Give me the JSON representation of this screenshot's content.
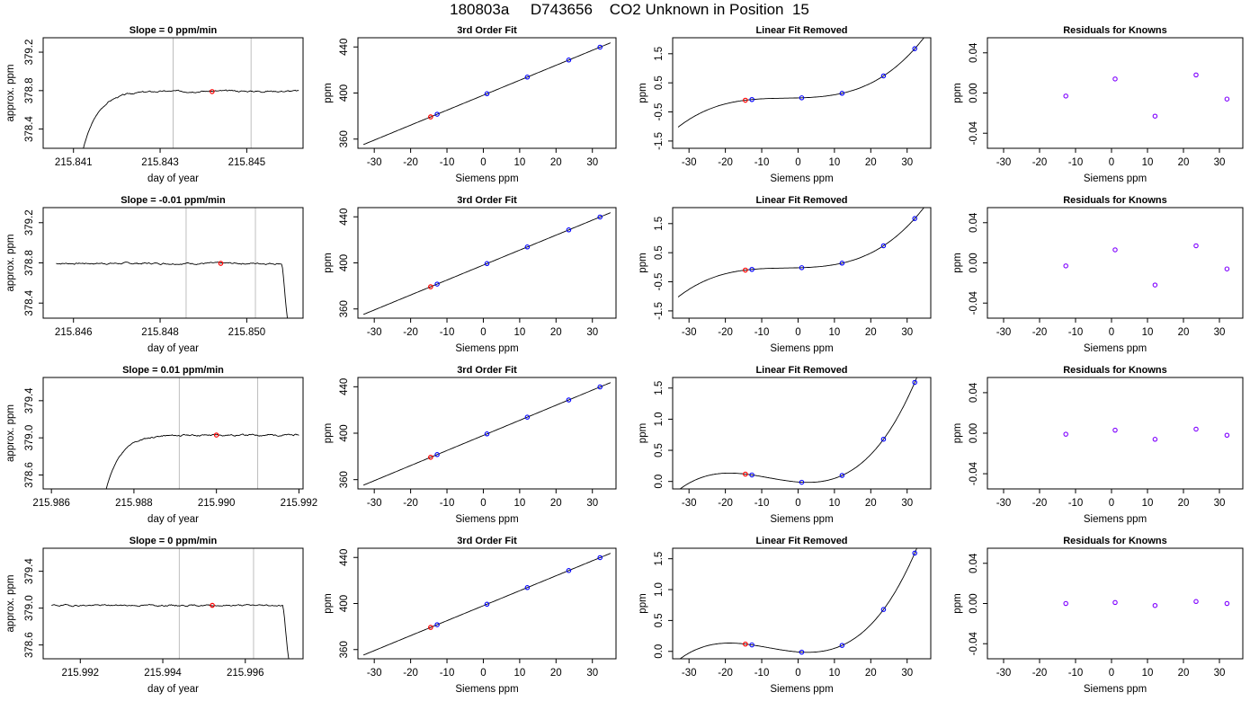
{
  "title": "180803a     D743656    CO2 Unknown in Position  15",
  "colors": {
    "line": "#000000",
    "known": "#0000ff",
    "unknown": "#ff0000",
    "resid": "#7f00ff",
    "vline": "#bebebe",
    "axis": "#000000"
  },
  "chart_data": [
    {
      "type": "line",
      "title": "Slope =  0  ppm/min",
      "xlabel": "day of year",
      "ylabel": "approx. ppm",
      "xlim": [
        215.8403,
        215.8463
      ],
      "ylim": [
        378.2,
        379.35
      ],
      "xticks": [
        215.841,
        215.843,
        215.845
      ],
      "xtick_labels": [
        "215.841",
        "215.843",
        "215.845"
      ],
      "yticks": [
        378.4,
        378.8,
        379.2
      ],
      "ytick_labels": [
        "378.4",
        "378.8",
        "379.2"
      ],
      "vlines": [
        215.8433,
        215.8451
      ],
      "marker": {
        "x": 215.8442,
        "y": 378.79
      },
      "shape": "rise",
      "level": 378.795,
      "start_y": 378.15,
      "end_y": 378.795,
      "t0": 215.841,
      "t1": 215.8462,
      "tr": 215.8412,
      "seed": 3
    },
    {
      "type": "line",
      "title": "3rd Order Fit",
      "xlabel": "Siemens ppm",
      "ylabel": "ppm",
      "xlim": [
        -34.5,
        36.5
      ],
      "ylim": [
        352,
        448
      ],
      "xticks": [
        -30,
        -20,
        -10,
        0,
        10,
        20,
        30
      ],
      "xtick_labels": [
        "-30",
        "-20",
        "-10",
        "0",
        "10",
        "20",
        "30"
      ],
      "yticks": [
        360,
        400,
        440
      ],
      "ytick_labels": [
        "360",
        "400",
        "440"
      ],
      "curve": {
        "a": [
          398.1,
          1.3,
          0,
          0
        ],
        "x": [
          -33,
          35
        ]
      },
      "known_x": [
        -12.7,
        1.0,
        12.1,
        23.5,
        32.1
      ],
      "unknown_x": [
        -14.5
      ]
    },
    {
      "type": "line",
      "title": "Linear Fit Removed",
      "xlabel": "Siemens ppm",
      "ylabel": "ppm",
      "xlim": [
        -34.5,
        36.5
      ],
      "ylim": [
        -1.75,
        2.05
      ],
      "xticks": [
        -30,
        -20,
        -10,
        0,
        10,
        20,
        30
      ],
      "xtick_labels": [
        "-30",
        "-20",
        "-10",
        "0",
        "10",
        "20",
        "30"
      ],
      "yticks": [
        -1.5,
        -0.5,
        0.5,
        1.5
      ],
      "ytick_labels": [
        "-1.5",
        "-0.5",
        "0.5",
        "1.5"
      ],
      "curve": {
        "a": [
          -0.018,
          0.0033,
          0.000375,
          3.63e-05
        ],
        "x": [
          -33,
          35
        ]
      },
      "known_x": [
        -12.7,
        1.0,
        12.1,
        23.5,
        32.1
      ],
      "unknown_x": [
        -14.5
      ]
    },
    {
      "type": "scatter",
      "title": "Residuals for Knowns",
      "xlabel": "Siemens ppm",
      "ylabel": "ppm",
      "xlim": [
        -34.5,
        36.5
      ],
      "ylim": [
        -0.055,
        0.055
      ],
      "xticks": [
        -30,
        -20,
        -10,
        0,
        10,
        20,
        30
      ],
      "xtick_labels": [
        "-30",
        "-20",
        "-10",
        "0",
        "10",
        "20",
        "30"
      ],
      "yticks": [
        -0.04,
        0.0,
        0.04
      ],
      "ytick_labels": [
        "-0.04",
        "0.00",
        "0.04"
      ],
      "x": [
        -12.7,
        1.0,
        12.1,
        23.5,
        32.1
      ],
      "y": [
        -0.003,
        0.014,
        -0.023,
        0.018,
        -0.006
      ]
    },
    {
      "type": "line",
      "title": "Slope =  -0.01  ppm/min",
      "xlabel": "day of year",
      "ylabel": "approx. ppm",
      "xlim": [
        215.8453,
        215.8513
      ],
      "ylim": [
        378.25,
        379.35
      ],
      "xticks": [
        215.846,
        215.848,
        215.85
      ],
      "xtick_labels": [
        "215.846",
        "215.848",
        "215.850"
      ],
      "yticks": [
        378.4,
        378.8,
        379.2
      ],
      "ytick_labels": [
        "378.4",
        "378.8",
        "379.2"
      ],
      "vlines": [
        215.8486,
        215.8502
      ],
      "marker": {
        "x": 215.8494,
        "y": 378.795
      },
      "shape": "fall",
      "level": 378.795,
      "start_y": 378.795,
      "end_y": 378.15,
      "t0": 215.8456,
      "t1": 215.8511,
      "tr": 215.8508,
      "seed": 7
    },
    {
      "type": "line",
      "title": "3rd Order Fit",
      "xlabel": "Siemens ppm",
      "ylabel": "ppm",
      "xlim": [
        -34.5,
        36.5
      ],
      "ylim": [
        352,
        448
      ],
      "xticks": [
        -30,
        -20,
        -10,
        0,
        10,
        20,
        30
      ],
      "xtick_labels": [
        "-30",
        "-20",
        "-10",
        "0",
        "10",
        "20",
        "30"
      ],
      "yticks": [
        360,
        400,
        440
      ],
      "ytick_labels": [
        "360",
        "400",
        "440"
      ],
      "curve": {
        "a": [
          398.1,
          1.3,
          0,
          0
        ],
        "x": [
          -33,
          35
        ]
      },
      "known_x": [
        -12.7,
        1.0,
        12.1,
        23.5,
        32.1
      ],
      "unknown_x": [
        -14.5
      ]
    },
    {
      "type": "line",
      "title": "Linear Fit Removed",
      "xlabel": "Siemens ppm",
      "ylabel": "ppm",
      "xlim": [
        -34.5,
        36.5
      ],
      "ylim": [
        -1.75,
        2.05
      ],
      "xticks": [
        -30,
        -20,
        -10,
        0,
        10,
        20,
        30
      ],
      "xtick_labels": [
        "-30",
        "-20",
        "-10",
        "0",
        "10",
        "20",
        "30"
      ],
      "yticks": [
        -1.5,
        -0.5,
        0.5,
        1.5
      ],
      "ytick_labels": [
        "-1.5",
        "-0.5",
        "0.5",
        "1.5"
      ],
      "curve": {
        "a": [
          -0.018,
          0.0033,
          0.000375,
          3.63e-05
        ],
        "x": [
          -33,
          35
        ]
      },
      "known_x": [
        -12.7,
        1.0,
        12.1,
        23.5,
        32.1
      ],
      "unknown_x": [
        -14.5
      ]
    },
    {
      "type": "scatter",
      "title": "Residuals for Knowns",
      "xlabel": "Siemens ppm",
      "ylabel": "ppm",
      "xlim": [
        -34.5,
        36.5
      ],
      "ylim": [
        -0.055,
        0.055
      ],
      "xticks": [
        -30,
        -20,
        -10,
        0,
        10,
        20,
        30
      ],
      "xtick_labels": [
        "-30",
        "-20",
        "-10",
        "0",
        "10",
        "20",
        "30"
      ],
      "yticks": [
        -0.04,
        0.0,
        0.04
      ],
      "ytick_labels": [
        "-0.04",
        "0.00",
        "0.04"
      ],
      "x": [
        -12.7,
        1.0,
        12.1,
        23.5,
        32.1
      ],
      "y": [
        -0.003,
        0.013,
        -0.022,
        0.017,
        -0.006
      ]
    },
    {
      "type": "line",
      "title": "Slope =  0.01  ppm/min",
      "xlabel": "day of year",
      "ylabel": "approx. ppm",
      "xlim": [
        215.9858,
        215.9921
      ],
      "ylim": [
        378.45,
        379.65
      ],
      "xticks": [
        215.986,
        215.988,
        215.99,
        215.992
      ],
      "xtick_labels": [
        "215.986",
        "215.988",
        "215.990",
        "215.992"
      ],
      "yticks": [
        378.6,
        379.0,
        379.4
      ],
      "ytick_labels": [
        "378.6",
        "379.0",
        "379.4"
      ],
      "vlines": [
        215.9891,
        215.991
      ],
      "marker": {
        "x": 215.99,
        "y": 379.03
      },
      "shape": "rise",
      "level": 379.03,
      "start_y": 378.4,
      "end_y": 379.03,
      "t0": 215.9871,
      "t1": 215.992,
      "tr": 215.9873,
      "seed": 11
    },
    {
      "type": "line",
      "title": "3rd Order Fit",
      "xlabel": "Siemens ppm",
      "ylabel": "ppm",
      "xlim": [
        -34.5,
        36.5
      ],
      "ylim": [
        352,
        448
      ],
      "xticks": [
        -30,
        -20,
        -10,
        0,
        10,
        20,
        30
      ],
      "xtick_labels": [
        "-30",
        "-20",
        "-10",
        "0",
        "10",
        "20",
        "30"
      ],
      "yticks": [
        360,
        400,
        440
      ],
      "ytick_labels": [
        "360",
        "400",
        "440"
      ],
      "curve": {
        "a": [
          398.1,
          1.3,
          0,
          0
        ],
        "x": [
          -33,
          35
        ]
      },
      "known_x": [
        -12.7,
        1.0,
        12.1,
        23.5,
        32.1
      ],
      "unknown_x": [
        -14.5
      ]
    },
    {
      "type": "line",
      "title": "Linear Fit Removed",
      "xlabel": "Siemens ppm",
      "ylabel": "ppm",
      "xlim": [
        -34.5,
        36.5
      ],
      "ylim": [
        -0.12,
        1.67
      ],
      "xticks": [
        -30,
        -20,
        -10,
        0,
        10,
        20,
        30
      ],
      "xtick_labels": [
        "-30",
        "-20",
        "-10",
        "0",
        "10",
        "20",
        "30"
      ],
      "yticks": [
        0.0,
        0.5,
        1.0,
        1.5
      ],
      "ytick_labels": [
        "0.0",
        "0.5",
        "1.0",
        "1.5"
      ],
      "curve": {
        "a": [
          -0.009,
          -0.0045,
          0.00073,
          3e-05
        ],
        "x": [
          -33,
          35
        ]
      },
      "known_x": [
        -12.7,
        1.0,
        12.1,
        23.5,
        32.1
      ],
      "unknown_x": [
        -14.5
      ]
    },
    {
      "type": "scatter",
      "title": "Residuals for Knowns",
      "xlabel": "Siemens ppm",
      "ylabel": "ppm",
      "xlim": [
        -34.5,
        36.5
      ],
      "ylim": [
        -0.055,
        0.055
      ],
      "xticks": [
        -30,
        -20,
        -10,
        0,
        10,
        20,
        30
      ],
      "xtick_labels": [
        "-30",
        "-20",
        "-10",
        "0",
        "10",
        "20",
        "30"
      ],
      "yticks": [
        -0.04,
        0.0,
        0.04
      ],
      "ytick_labels": [
        "-0.04",
        "0.00",
        "0.04"
      ],
      "x": [
        -12.7,
        1.0,
        12.1,
        23.5,
        32.1
      ],
      "y": [
        -0.001,
        0.003,
        -0.006,
        0.004,
        -0.002
      ]
    },
    {
      "type": "line",
      "title": "Slope =  0  ppm/min",
      "xlabel": "day of year",
      "ylabel": "approx. ppm",
      "xlim": [
        215.9911,
        215.9974
      ],
      "ylim": [
        378.45,
        379.65
      ],
      "xticks": [
        215.992,
        215.994,
        215.996
      ],
      "xtick_labels": [
        "215.992",
        "215.994",
        "215.996"
      ],
      "yticks": [
        378.6,
        379.0,
        379.4
      ],
      "ytick_labels": [
        "378.6",
        "379.0",
        "379.4"
      ],
      "vlines": [
        215.9944,
        215.9962
      ],
      "marker": {
        "x": 215.9952,
        "y": 379.03
      },
      "shape": "fall",
      "level": 379.03,
      "start_y": 379.03,
      "end_y": 378.4,
      "t0": 215.9913,
      "t1": 215.9972,
      "tr": 215.9969,
      "seed": 19
    },
    {
      "type": "line",
      "title": "3rd Order Fit",
      "xlabel": "Siemens ppm",
      "ylabel": "ppm",
      "xlim": [
        -34.5,
        36.5
      ],
      "ylim": [
        352,
        448
      ],
      "xticks": [
        -30,
        -20,
        -10,
        0,
        10,
        20,
        30
      ],
      "xtick_labels": [
        "-30",
        "-20",
        "-10",
        "0",
        "10",
        "20",
        "30"
      ],
      "yticks": [
        360,
        400,
        440
      ],
      "ytick_labels": [
        "360",
        "400",
        "440"
      ],
      "curve": {
        "a": [
          398.1,
          1.3,
          0,
          0
        ],
        "x": [
          -33,
          35
        ]
      },
      "known_x": [
        -12.7,
        1.0,
        12.1,
        23.5,
        32.1
      ],
      "unknown_x": [
        -14.5
      ]
    },
    {
      "type": "line",
      "title": "Linear Fit Removed",
      "xlabel": "Siemens ppm",
      "ylabel": "ppm",
      "xlim": [
        -34.5,
        36.5
      ],
      "ylim": [
        -0.12,
        1.67
      ],
      "xticks": [
        -30,
        -20,
        -10,
        0,
        10,
        20,
        30
      ],
      "xtick_labels": [
        "-30",
        "-20",
        "-10",
        "0",
        "10",
        "20",
        "30"
      ],
      "yticks": [
        0.0,
        0.5,
        1.0,
        1.5
      ],
      "ytick_labels": [
        "0.0",
        "0.5",
        "1.0",
        "1.5"
      ],
      "curve": {
        "a": [
          -0.009,
          -0.0045,
          0.00073,
          3e-05
        ],
        "x": [
          -33,
          35
        ]
      },
      "known_x": [
        -12.7,
        1.0,
        12.1,
        23.5,
        32.1
      ],
      "unknown_x": [
        -14.5
      ]
    },
    {
      "type": "scatter",
      "title": "Residuals for Knowns",
      "xlabel": "Siemens ppm",
      "ylabel": "ppm",
      "xlim": [
        -34.5,
        36.5
      ],
      "ylim": [
        -0.055,
        0.055
      ],
      "xticks": [
        -30,
        -20,
        -10,
        0,
        10,
        20,
        30
      ],
      "xtick_labels": [
        "-30",
        "-20",
        "-10",
        "0",
        "10",
        "20",
        "30"
      ],
      "yticks": [
        -0.04,
        0.0,
        0.04
      ],
      "ytick_labels": [
        "-0.04",
        "0.00",
        "0.04"
      ],
      "x": [
        -12.7,
        1.0,
        12.1,
        23.5,
        32.1
      ],
      "y": [
        0.0,
        0.001,
        -0.002,
        0.002,
        0.0
      ]
    }
  ]
}
